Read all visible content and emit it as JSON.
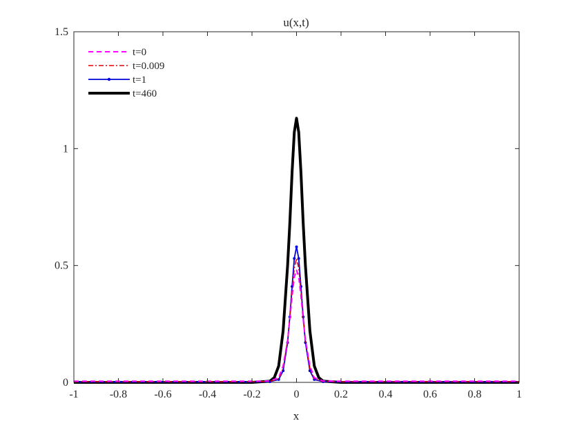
{
  "chart_data": {
    "type": "line",
    "title": "u(x,t)",
    "xlabel": "x",
    "ylabel": "",
    "xlim": [
      -1,
      1
    ],
    "ylim": [
      0,
      1.5
    ],
    "x_ticks": [
      -1,
      -0.8,
      -0.6,
      -0.4,
      -0.2,
      0,
      0.2,
      0.4,
      0.6,
      0.8,
      1
    ],
    "x_tick_labels": [
      "-1",
      "-0.8",
      "-0.6",
      "-0.4",
      "-0.2",
      "0",
      "0.2",
      "0.4",
      "0.6",
      "0.8",
      "1"
    ],
    "y_ticks": [
      0,
      0.5,
      1,
      1.5
    ],
    "y_tick_labels": [
      "0",
      "0.5",
      "1",
      "1.5"
    ],
    "grid": false,
    "legend_position": "top-left",
    "series": [
      {
        "name": "t=0",
        "color": "#ff00ff",
        "style": "dashed",
        "x": [
          -1,
          -0.5,
          -0.2,
          -0.12,
          -0.08,
          -0.06,
          -0.04,
          -0.03,
          -0.02,
          -0.01,
          0,
          0.01,
          0.02,
          0.03,
          0.04,
          0.06,
          0.08,
          0.12,
          0.2,
          0.5,
          1
        ],
        "y": [
          0.005,
          0.005,
          0.005,
          0.006,
          0.02,
          0.07,
          0.18,
          0.27,
          0.37,
          0.45,
          0.48,
          0.45,
          0.37,
          0.27,
          0.18,
          0.07,
          0.02,
          0.006,
          0.005,
          0.005,
          0.005
        ]
      },
      {
        "name": "t=0.009",
        "color": "#e00000",
        "style": "dashdot",
        "x": [
          -1,
          -0.5,
          -0.2,
          -0.12,
          -0.08,
          -0.06,
          -0.04,
          -0.03,
          -0.02,
          -0.01,
          0,
          0.01,
          0.02,
          0.03,
          0.04,
          0.06,
          0.08,
          0.12,
          0.2,
          0.5,
          1
        ],
        "y": [
          0.003,
          0.003,
          0.003,
          0.004,
          0.015,
          0.06,
          0.18,
          0.28,
          0.39,
          0.49,
          0.53,
          0.49,
          0.39,
          0.28,
          0.18,
          0.06,
          0.015,
          0.004,
          0.003,
          0.003,
          0.003
        ]
      },
      {
        "name": "t=1",
        "color": "#0000dd",
        "style": "solid-dot",
        "x": [
          -1,
          -0.5,
          -0.2,
          -0.12,
          -0.08,
          -0.06,
          -0.04,
          -0.03,
          -0.02,
          -0.01,
          0,
          0.01,
          0.02,
          0.03,
          0.04,
          0.06,
          0.08,
          0.12,
          0.2,
          0.5,
          1
        ],
        "y": [
          0.002,
          0.002,
          0.002,
          0.003,
          0.012,
          0.05,
          0.17,
          0.28,
          0.41,
          0.53,
          0.58,
          0.53,
          0.41,
          0.28,
          0.17,
          0.05,
          0.012,
          0.003,
          0.002,
          0.002,
          0.002
        ]
      },
      {
        "name": "t=460",
        "color": "#000000",
        "style": "thick",
        "x": [
          -1,
          -0.5,
          -0.2,
          -0.12,
          -0.1,
          -0.08,
          -0.06,
          -0.04,
          -0.03,
          -0.02,
          -0.01,
          0,
          0.01,
          0.02,
          0.03,
          0.04,
          0.06,
          0.08,
          0.1,
          0.12,
          0.2,
          0.5,
          1
        ],
        "y": [
          0.0,
          0.0,
          0.0,
          0.005,
          0.02,
          0.07,
          0.22,
          0.5,
          0.68,
          0.9,
          1.07,
          1.13,
          1.07,
          0.9,
          0.68,
          0.5,
          0.22,
          0.07,
          0.02,
          0.005,
          0.0,
          0.0,
          0.0
        ]
      }
    ]
  }
}
